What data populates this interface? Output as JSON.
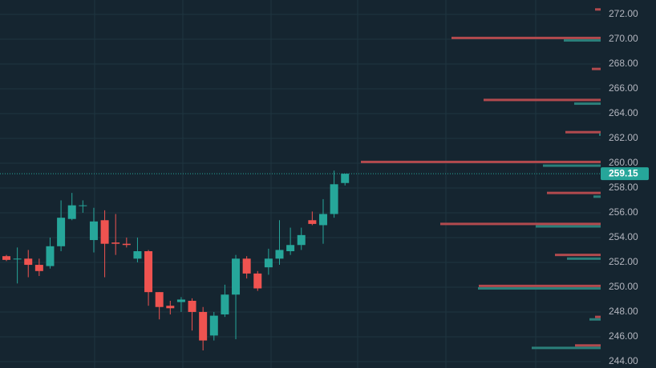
{
  "chart_data": {
    "type": "candlestick",
    "categories": [
      null,
      null,
      null,
      null,
      null,
      null,
      null,
      null,
      null,
      null,
      null,
      null,
      null,
      null,
      null,
      null,
      null,
      null,
      null,
      null,
      null,
      null,
      null,
      null,
      null,
      null,
      null,
      null,
      null,
      null,
      null,
      null
    ],
    "open": [
      252.5,
      252.3,
      252.3,
      251.8,
      251.7,
      253.3,
      255.5,
      256.6,
      253.8,
      255.4,
      253.6,
      253.5,
      252.3,
      252.9,
      249.6,
      248.5,
      248.8,
      248.9,
      248.0,
      246.1,
      247.8,
      249.4,
      252.3,
      251.1,
      251.6,
      252.3,
      252.9,
      253.4,
      255.4,
      255.0,
      255.9,
      258.4
    ],
    "high": [
      252.6,
      253.2,
      253.0,
      252.3,
      254.0,
      257.0,
      257.6,
      257.0,
      256.4,
      256.2,
      255.9,
      254.0,
      254.0,
      253.0,
      249.6,
      248.9,
      249.2,
      249.1,
      248.4,
      248.0,
      250.2,
      252.6,
      252.5,
      251.3,
      253.1,
      255.4,
      254.8,
      254.8,
      256.1,
      257.1,
      259.4,
      259.1
    ],
    "low": [
      252.1,
      250.3,
      250.8,
      250.9,
      251.5,
      252.9,
      255.4,
      256.0,
      252.8,
      250.8,
      252.6,
      253.2,
      252.0,
      248.5,
      247.4,
      247.8,
      248.0,
      246.5,
      244.9,
      245.7,
      247.6,
      245.8,
      250.7,
      249.7,
      251.0,
      251.8,
      252.6,
      253.0,
      255.0,
      253.5,
      255.6,
      258.2
    ],
    "close": [
      252.2,
      252.3,
      251.8,
      251.3,
      253.3,
      255.6,
      256.6,
      256.6,
      255.3,
      253.5,
      253.5,
      253.4,
      252.9,
      249.6,
      248.4,
      248.3,
      249.0,
      248.0,
      245.7,
      247.7,
      249.4,
      252.3,
      251.1,
      249.9,
      252.3,
      253.0,
      253.4,
      254.2,
      255.1,
      255.9,
      258.3,
      259.15
    ],
    "up_color": "#26a69a",
    "down_color": "#ef5350",
    "ylim": [
      243.48,
      273.16
    ],
    "yticks": [
      {
        "value": 244,
        "label": "244.00"
      },
      {
        "value": 246,
        "label": "246.00"
      },
      {
        "value": 248,
        "label": "248.00"
      },
      {
        "value": 250,
        "label": "250.00"
      },
      {
        "value": 252,
        "label": "252.00"
      },
      {
        "value": 254,
        "label": "254.00"
      },
      {
        "value": 256,
        "label": "256.00"
      },
      {
        "value": 258,
        "label": "258.00"
      },
      {
        "value": 260,
        "label": "260.00"
      },
      {
        "value": 262,
        "label": "262.00"
      },
      {
        "value": 264,
        "label": "264.00"
      },
      {
        "value": 266,
        "label": "266.00"
      },
      {
        "value": 268,
        "label": "268.00"
      },
      {
        "value": 270,
        "label": "270.00"
      },
      {
        "value": 272,
        "label": "272.00"
      }
    ],
    "grid": true,
    "last_price": {
      "value": 259.15,
      "label": "259.15",
      "color": "#26a69a"
    },
    "profile_lim": [
      0,
      300
    ],
    "volume_profile": [
      {
        "color": "#b24a4e",
        "prices": [
          272.4,
          270.1,
          267.6,
          265.1,
          262.5,
          260.1,
          257.6,
          255.1,
          252.6,
          250.1,
          247.6,
          245.3
        ],
        "values": [
          7,
          186,
          11,
          146,
          44,
          299,
          67,
          200,
          57,
          152,
          7,
          32
        ]
      },
      {
        "color": "#2b7f7a",
        "prices": [
          269.9,
          264.8,
          262.3,
          259.8,
          257.3,
          254.9,
          252.3,
          249.9,
          247.4,
          245.1
        ],
        "values": [
          46,
          33,
          2,
          72,
          9,
          81,
          42,
          153,
          14,
          86
        ]
      }
    ]
  }
}
